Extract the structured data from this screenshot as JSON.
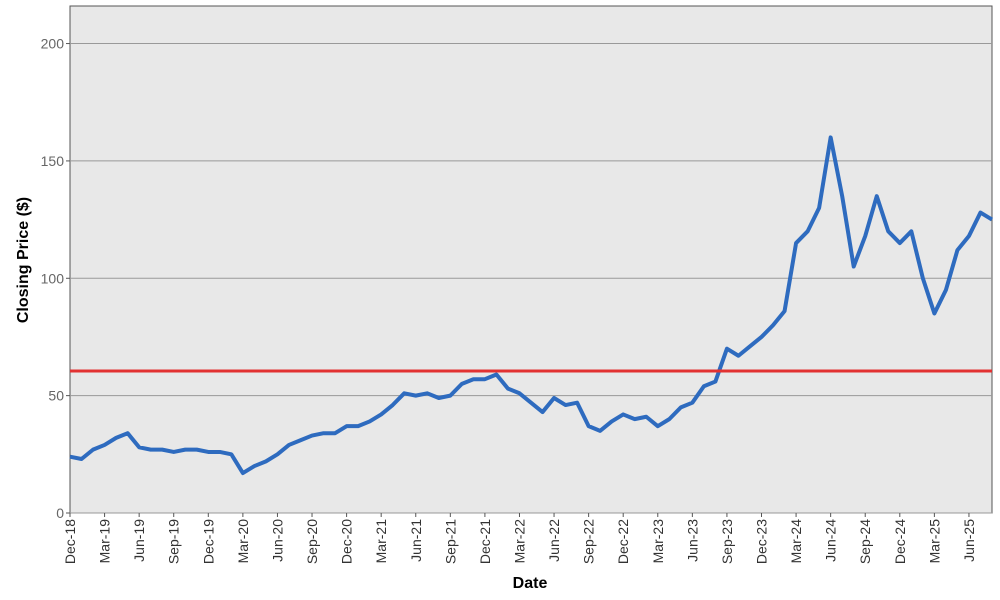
{
  "chart_data": {
    "type": "line",
    "y_label": "Closing Price ($)",
    "x_label": "Date",
    "categories": [
      "Dec-18",
      null,
      null,
      "Mar-19",
      null,
      null,
      "Jun-19",
      null,
      null,
      "Sep-19",
      null,
      null,
      "Dec-19",
      null,
      null,
      "Mar-20",
      null,
      null,
      "Jun-20",
      null,
      null,
      "Sep-20",
      null,
      null,
      "Dec-20",
      null,
      null,
      "Mar-21",
      null,
      null,
      "Jun-21",
      null,
      null,
      "Sep-21",
      null,
      null,
      "Dec-21",
      null,
      null,
      "Mar-22",
      null,
      null,
      "Jun-22",
      null,
      null,
      "Sep-22",
      null,
      null,
      "Dec-22",
      null,
      null,
      "Mar-23",
      null,
      null,
      "Jun-23",
      null,
      null,
      "Sep-23",
      null,
      null,
      "Dec-23",
      null,
      null,
      "Mar-24",
      null,
      null,
      "Jun-24",
      null,
      null,
      "Sep-24",
      null,
      null,
      "Dec-24",
      null,
      null,
      "Mar-25",
      null,
      null,
      "Jun-25",
      null,
      null
    ],
    "values": [
      24,
      23,
      27,
      29,
      32,
      34,
      28,
      27,
      27,
      26,
      27,
      27,
      26,
      26,
      25,
      17,
      20,
      22,
      25,
      29,
      31,
      33,
      34,
      34,
      37,
      37,
      39,
      42,
      46,
      51,
      50,
      51,
      49,
      50,
      55,
      57,
      57,
      59,
      53,
      51,
      47,
      43,
      49,
      46,
      47,
      37,
      35,
      39,
      42,
      40,
      41,
      37,
      40,
      45,
      47,
      54,
      56,
      70,
      67,
      71,
      75,
      80,
      86,
      115,
      120,
      130,
      160,
      135,
      105,
      118,
      135,
      120,
      115,
      120,
      100,
      85,
      95,
      112,
      118,
      128,
      125
    ],
    "color": "#2e6bbf",
    "reference_line": {
      "value": 60.5,
      "color": "#e23232"
    },
    "ylim": [
      0,
      216
    ],
    "yticks": [
      0,
      50,
      100,
      150,
      200
    ],
    "grid": true
  }
}
